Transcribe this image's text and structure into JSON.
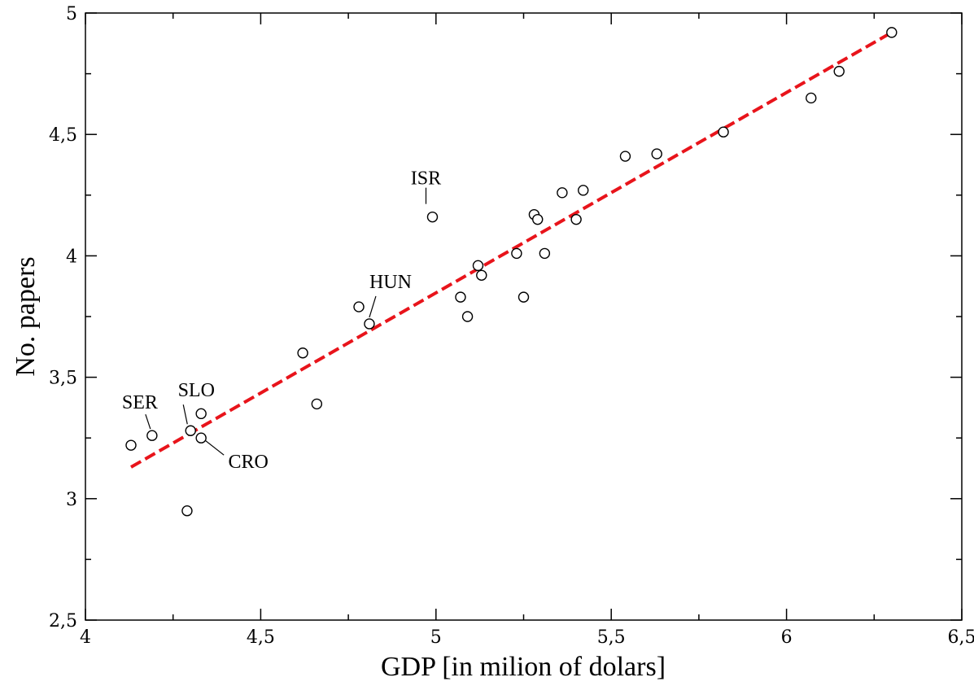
{
  "chart_data": {
    "type": "scatter",
    "xlabel": "GDP [in milion of dolars]",
    "ylabel": "No. papers",
    "xlim": [
      4,
      6.5
    ],
    "ylim": [
      2.5,
      5
    ],
    "x_ticks": [
      {
        "value": 4,
        "label": "4"
      },
      {
        "value": 4.5,
        "label": "4,5"
      },
      {
        "value": 5,
        "label": "5"
      },
      {
        "value": 5.5,
        "label": "5,5"
      },
      {
        "value": 6,
        "label": "6"
      },
      {
        "value": 6.5,
        "label": "6,5"
      }
    ],
    "y_ticks": [
      {
        "value": 2.5,
        "label": "2,5"
      },
      {
        "value": 3,
        "label": "3"
      },
      {
        "value": 3.5,
        "label": "3,5"
      },
      {
        "value": 4,
        "label": "4"
      },
      {
        "value": 4.5,
        "label": "4,5"
      },
      {
        "value": 5,
        "label": "5"
      }
    ],
    "points": [
      {
        "x": 4.13,
        "y": 3.22
      },
      {
        "x": 4.19,
        "y": 3.26
      },
      {
        "x": 4.3,
        "y": 3.28
      },
      {
        "x": 4.33,
        "y": 3.35
      },
      {
        "x": 4.33,
        "y": 3.25
      },
      {
        "x": 4.29,
        "y": 2.95
      },
      {
        "x": 4.62,
        "y": 3.6
      },
      {
        "x": 4.66,
        "y": 3.39
      },
      {
        "x": 4.78,
        "y": 3.79
      },
      {
        "x": 4.81,
        "y": 3.72
      },
      {
        "x": 4.99,
        "y": 4.16
      },
      {
        "x": 5.07,
        "y": 3.83
      },
      {
        "x": 5.09,
        "y": 3.75
      },
      {
        "x": 5.12,
        "y": 3.96
      },
      {
        "x": 5.13,
        "y": 3.92
      },
      {
        "x": 5.23,
        "y": 4.01
      },
      {
        "x": 5.25,
        "y": 3.83
      },
      {
        "x": 5.28,
        "y": 4.17
      },
      {
        "x": 5.29,
        "y": 4.15
      },
      {
        "x": 5.31,
        "y": 4.01
      },
      {
        "x": 5.36,
        "y": 4.26
      },
      {
        "x": 5.4,
        "y": 4.15
      },
      {
        "x": 5.42,
        "y": 4.27
      },
      {
        "x": 5.54,
        "y": 4.41
      },
      {
        "x": 5.63,
        "y": 4.42
      },
      {
        "x": 5.82,
        "y": 4.51
      },
      {
        "x": 6.07,
        "y": 4.65
      },
      {
        "x": 6.15,
        "y": 4.76
      },
      {
        "x": 6.3,
        "y": 4.92
      }
    ],
    "fit_line": {
      "x1": 4.13,
      "y1": 3.13,
      "x2": 6.3,
      "y2": 4.92,
      "color": "#e8141b"
    },
    "annotations": [
      {
        "label": "ISR",
        "x": 4.99,
        "y": 4.16
      },
      {
        "label": "HUN",
        "x": 4.81,
        "y": 3.72
      },
      {
        "label": "SER",
        "x": 4.19,
        "y": 3.26
      },
      {
        "label": "SLO",
        "x": 4.3,
        "y": 3.28
      },
      {
        "label": "CRO",
        "x": 4.33,
        "y": 3.25
      }
    ],
    "grid": false,
    "legend": "none"
  }
}
